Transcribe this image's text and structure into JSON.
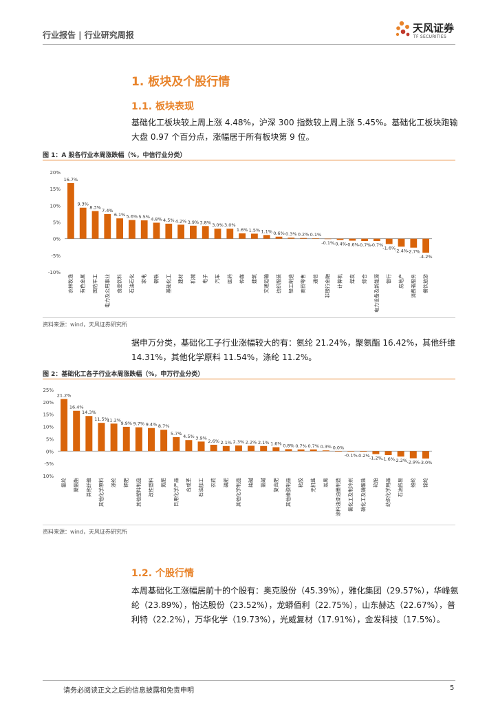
{
  "header": {
    "left": "行业报告 | 行业研究周报",
    "logo_name": "天风证券",
    "logo_sub": "TF SECURITIES"
  },
  "section1": {
    "title": "1. 板块及个股行情",
    "sub1": {
      "title": "1.1. 板块表现",
      "para": "基础化工板块较上周上涨 4.48%，沪深 300 指数较上周上涨 5.45%。基础化工板块跑输大盘 0.97 个百分点，涨幅居于所有板块第 9 位。"
    },
    "para2": "据申万分类，基础化工子行业涨幅较大的有：氨纶 21.24%，聚氨酯 16.42%，其他纤维 14.31%，其他化学原料 11.54%，涤纶 11.2%。",
    "sub2": {
      "title": "1.2. 个股行情",
      "para": "本周基础化工涨幅居前十的个股有：奥克股份（45.39%），雅化集团（29.57%），华峰氨纶（23.89%），怡达股份（23.52%），龙蟒佰利（22.75%），山东赫达（22.67%），普利特（22.2%），万华化学（19.73%），光威复材（17.91%），金发科技（17.5%）。"
    }
  },
  "figure1": {
    "title": "图 1：A 股各行业本周涨跌幅（%，中信行业分类）",
    "source": "资料来源：wind，天风证券研究所"
  },
  "figure2": {
    "title": "图 2：基础化工各子行业本周涨跌幅（%，申万行业分类）",
    "source": "资料来源：wind，天风证券研究所"
  },
  "footer": {
    "disclaimer": "请务必阅读正文之后的信息披露和免责申明",
    "page": "5"
  },
  "colors": {
    "bar": "#d9640a",
    "accent": "#e8832a"
  },
  "chart_data": [
    {
      "type": "bar",
      "categories": [
        "农林牧渔",
        "有色金属",
        "国防军工",
        "电力及公用事业",
        "食品饮料",
        "石油石化",
        "家电",
        "钢铁",
        "基础化工",
        "建材",
        "机械",
        "电子",
        "汽车",
        "医药",
        "传媒",
        "建筑",
        "交通运输",
        "纺织服装",
        "轻工制造",
        "商贸零售",
        "通信",
        "非银行金融",
        "计算机",
        "煤炭",
        "综合",
        "电力设备及新能源",
        "银行",
        "房地产",
        "消费者服务",
        "餐饮旅游"
      ],
      "values": [
        16.7,
        9.3,
        8.3,
        7.4,
        6.1,
        5.6,
        5.5,
        4.8,
        4.5,
        4.2,
        3.9,
        3.8,
        3.0,
        3.0,
        1.6,
        1.5,
        1.1,
        0.6,
        0.3,
        0.2,
        0.1,
        -0.1,
        -0.4,
        -0.6,
        -0.7,
        -0.7,
        -1.6,
        -2.4,
        -2.7,
        -4.2
      ],
      "labels": [
        "16.7%",
        "9.3%",
        "8.3%",
        "7.4%",
        "6.1%",
        "5.6%",
        "5.5%",
        "4.8%",
        "4.5%",
        "4.2%",
        "3.9%",
        "3.8%",
        "3.0%",
        "3.0%",
        "1.6%",
        "1.5%",
        "1.1%",
        "0.6%",
        "0.3%",
        "0.2%",
        "0.1%",
        "-0.1%",
        "-0.4%",
        "-0.6%",
        "-0.7%",
        "-0.7%",
        "-1.6%",
        "-2.4%",
        "-2.7%",
        "-4.2%"
      ],
      "yticks": [
        "20%",
        "15%",
        "10%",
        "5%",
        "0%",
        "-5%",
        "-10%"
      ],
      "ylim": [
        -10,
        20
      ]
    },
    {
      "type": "bar",
      "categories": [
        "氨纶",
        "聚氨酯",
        "其他纤维",
        "其他化学原料",
        "涤纶",
        "钾肥",
        "其他塑料制品",
        "改性塑料",
        "氮肥",
        "日用化学产品",
        "合成革",
        "石油加工",
        "农药",
        "磷肥",
        "其他化学制品",
        "纯碱",
        "氯碱",
        "复合肥",
        "其他橡胶制品",
        "粘胶",
        "无机盐",
        "炭黑",
        "涂料油漆油墨制造",
        "氟化工及制冷剂",
        "磷化工及磷酸盐",
        "轮胎",
        "纺织化学用品",
        "石油贸易",
        "维纶",
        "锦纶"
      ],
      "values": [
        21.2,
        16.4,
        14.3,
        11.5,
        11.2,
        9.9,
        9.7,
        9.4,
        8.7,
        5.7,
        4.5,
        3.9,
        2.6,
        2.1,
        2.3,
        2.2,
        2.1,
        1.6,
        0.8,
        0.7,
        0.7,
        0.3,
        0.0,
        -0.1,
        -0.2,
        -1.2,
        -1.6,
        -2.2,
        -2.9,
        -3.0
      ],
      "labels": [
        "21.2%",
        "16.4%",
        "14.3%",
        "11.5%",
        "11.2%",
        "9.9%",
        "9.7%",
        "9.4%",
        "8.7%",
        "5.7%",
        "4.5%",
        "3.9%",
        "2.6%",
        "2.1%",
        "2.3%",
        "2.2%",
        "2.1%",
        "1.6%",
        "0.8%",
        "0.7%",
        "0.7%",
        "0.3%",
        "0.0%",
        "-0.1%",
        "-0.2%",
        "-1.2%",
        "-1.6%",
        "-2.2%",
        "-2.9%",
        "-3.0%"
      ],
      "yticks": [
        "25%",
        "20%",
        "15%",
        "10%",
        "5%",
        "0%",
        "-5%",
        "-10%"
      ],
      "ylim": [
        -10,
        25
      ]
    }
  ]
}
